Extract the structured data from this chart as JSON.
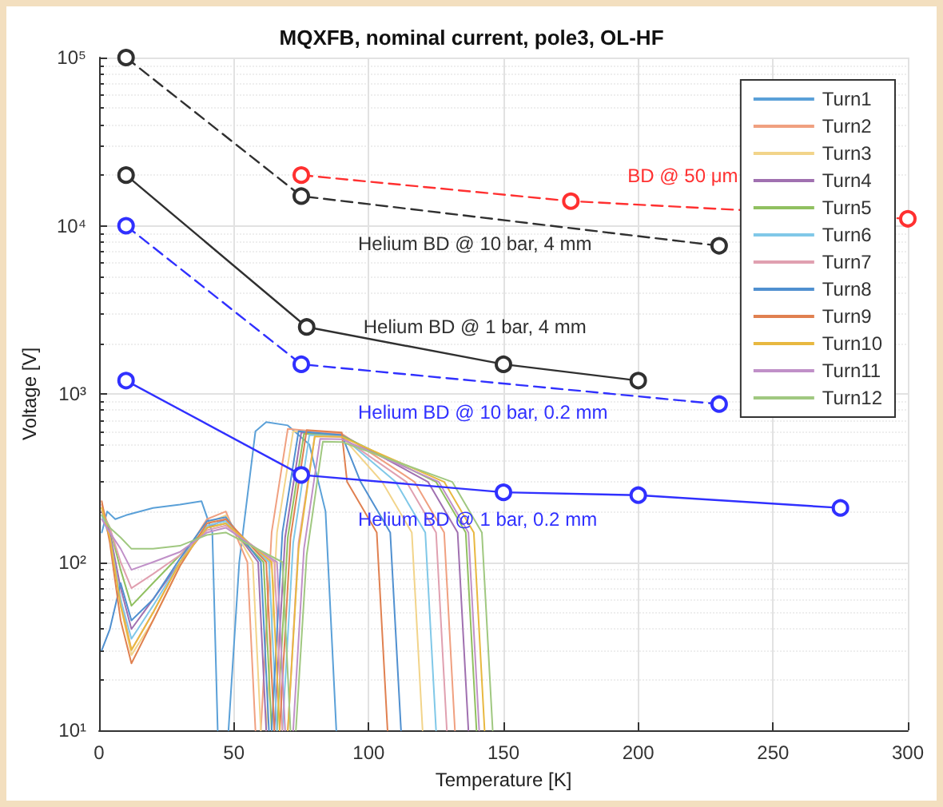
{
  "chart_data": {
    "type": "line",
    "title": "MQXFB, nominal current, pole3, OL-HF",
    "xlabel": "Temperature [K]",
    "ylabel": "Voltage [V]",
    "xlim": [
      0,
      300
    ],
    "xticks": [
      0,
      50,
      100,
      150,
      200,
      250,
      300
    ],
    "ylim": [
      10,
      100000
    ],
    "yticks": [
      {
        "value": 10,
        "label": "10¹"
      },
      {
        "value": 100,
        "label": "10²"
      },
      {
        "value": 1000,
        "label": "10³"
      },
      {
        "value": 10000,
        "label": "10⁴"
      },
      {
        "value": 100000,
        "label": "10⁵"
      }
    ],
    "log": "y",
    "grid": true,
    "legend": "top right",
    "marker": "none",
    "line_style": "solid",
    "series": [
      {
        "name": "Turn1",
        "color": "#5aa0d8",
        "x": [
          1,
          3,
          6,
          10,
          20,
          30,
          38,
          42,
          44,
          46,
          48,
          52,
          58,
          62,
          70,
          78,
          84,
          88
        ],
        "values": [
          150,
          200,
          180,
          190,
          210,
          220,
          230,
          150,
          10,
          null,
          10,
          100,
          600,
          680,
          650,
          500,
          200,
          10
        ]
      },
      {
        "name": "Turn2",
        "color": "#f0a080",
        "x": [
          1,
          4,
          8,
          12,
          20,
          30,
          40,
          47,
          55,
          58,
          59,
          60,
          64,
          70,
          90,
          117,
          128,
          132
        ],
        "values": [
          220,
          150,
          60,
          30,
          50,
          100,
          180,
          200,
          100,
          10,
          null,
          10,
          150,
          620,
          580,
          300,
          150,
          10
        ]
      },
      {
        "name": "Turn3",
        "color": "#f2d48a",
        "x": [
          1,
          4,
          8,
          12,
          20,
          30,
          40,
          47,
          57,
          60,
          61,
          62,
          66,
          72,
          90,
          105,
          116,
          120
        ],
        "values": [
          210,
          140,
          55,
          28,
          45,
          95,
          170,
          190,
          100,
          10,
          null,
          10,
          150,
          600,
          560,
          300,
          150,
          10
        ]
      },
      {
        "name": "Turn4",
        "color": "#a070b0",
        "x": [
          1,
          4,
          8,
          12,
          20,
          30,
          40,
          47,
          59,
          62,
          63,
          65,
          69,
          75,
          90,
          122,
          133,
          137
        ],
        "values": [
          200,
          150,
          70,
          40,
          60,
          100,
          160,
          180,
          100,
          10,
          null,
          10,
          140,
          590,
          570,
          300,
          150,
          10
        ]
      },
      {
        "name": "Turn5",
        "color": "#90c060",
        "x": [
          1,
          4,
          8,
          12,
          20,
          30,
          40,
          47,
          61,
          64,
          65,
          66,
          70,
          76,
          90,
          125,
          136,
          140
        ],
        "values": [
          200,
          160,
          90,
          55,
          75,
          110,
          160,
          170,
          100,
          10,
          null,
          10,
          140,
          580,
          565,
          300,
          150,
          10
        ]
      },
      {
        "name": "Turn6",
        "color": "#80c8e8",
        "x": [
          1,
          4,
          8,
          12,
          20,
          30,
          40,
          47,
          63,
          66,
          67,
          68,
          72,
          78,
          90,
          110,
          121,
          125
        ],
        "values": [
          190,
          140,
          60,
          35,
          55,
          100,
          165,
          175,
          100,
          10,
          null,
          10,
          130,
          570,
          560,
          300,
          150,
          10
        ]
      },
      {
        "name": "Turn7",
        "color": "#e0a0b0",
        "x": [
          1,
          4,
          8,
          12,
          20,
          30,
          40,
          47,
          65,
          68,
          69,
          70,
          74,
          80,
          90,
          114,
          125,
          129
        ],
        "values": [
          200,
          160,
          100,
          70,
          85,
          110,
          155,
          165,
          100,
          10,
          null,
          10,
          130,
          560,
          555,
          300,
          150,
          10
        ]
      },
      {
        "name": "Turn8",
        "color": "#5090d0",
        "x": [
          1,
          4,
          8,
          12,
          20,
          30,
          40,
          47,
          60,
          63,
          63.5,
          64,
          68,
          74,
          90,
          97,
          108,
          112
        ],
        "values": [
          30,
          40,
          75,
          45,
          60,
          105,
          175,
          185,
          100,
          10,
          null,
          10,
          150,
          600,
          570,
          300,
          150,
          10
        ]
      },
      {
        "name": "Turn9",
        "color": "#e08050",
        "x": [
          1,
          4,
          8,
          12,
          20,
          30,
          40,
          47,
          62,
          65,
          66,
          67,
          71,
          77,
          90,
          92,
          103,
          107
        ],
        "values": [
          230,
          130,
          45,
          25,
          45,
          95,
          170,
          180,
          100,
          10,
          null,
          10,
          140,
          610,
          590,
          300,
          150,
          10
        ]
      },
      {
        "name": "Turn10",
        "color": "#e8b840",
        "x": [
          1,
          4,
          8,
          12,
          20,
          30,
          40,
          47,
          64,
          67,
          68,
          70,
          74,
          80,
          90,
          128,
          139,
          143
        ],
        "values": [
          210,
          140,
          55,
          30,
          50,
          100,
          160,
          170,
          100,
          10,
          null,
          10,
          120,
          560,
          555,
          300,
          150,
          10
        ]
      },
      {
        "name": "Turn11",
        "color": "#c090c8",
        "x": [
          1,
          4,
          8,
          12,
          20,
          30,
          40,
          47,
          66,
          69,
          70,
          72,
          76,
          82,
          90,
          126,
          137,
          141
        ],
        "values": [
          180,
          150,
          120,
          90,
          100,
          115,
          150,
          160,
          100,
          10,
          null,
          10,
          120,
          540,
          538,
          300,
          150,
          10
        ]
      },
      {
        "name": "Turn12",
        "color": "#a0c880",
        "x": [
          1,
          4,
          8,
          12,
          20,
          30,
          40,
          47,
          68,
          71,
          72,
          73,
          77,
          83,
          90,
          131,
          142,
          146
        ],
        "values": [
          190,
          160,
          140,
          120,
          120,
          125,
          145,
          150,
          100,
          10,
          null,
          10,
          110,
          520,
          518,
          300,
          150,
          10
        ]
      },
      {
        "name": "BD @ 50 μm",
        "color": "#ff3030",
        "marker": "circle",
        "line_style": "dashed",
        "x": [
          75,
          175,
          300
        ],
        "values": [
          20000,
          14000,
          11000
        ]
      },
      {
        "name": "Helium BD @ 10 bar, 4 mm",
        "color": "#303030",
        "marker": "circle",
        "line_style": "dashed",
        "x": [
          10,
          75,
          230
        ],
        "values": [
          100000,
          15000,
          7600
        ]
      },
      {
        "name": "Helium BD @ 1 bar, 4 mm",
        "color": "#303030",
        "marker": "circle",
        "line_style": "solid",
        "x": [
          10,
          77,
          150,
          200
        ],
        "values": [
          20000,
          2500,
          1500,
          1200
        ]
      },
      {
        "name": "Helium BD @ 10 bar, 0.2 mm",
        "color": "#3030ff",
        "marker": "circle",
        "line_style": "dashed",
        "x": [
          10,
          75,
          230
        ],
        "values": [
          10000,
          1500,
          870
        ]
      },
      {
        "name": "Helium BD @ 1 bar, 0.2 mm",
        "color": "#3030ff",
        "marker": "circle",
        "line_style": "solid",
        "x": [
          10,
          75,
          150,
          200,
          275
        ],
        "values": [
          1200,
          330,
          260,
          250,
          210
        ]
      }
    ]
  }
}
